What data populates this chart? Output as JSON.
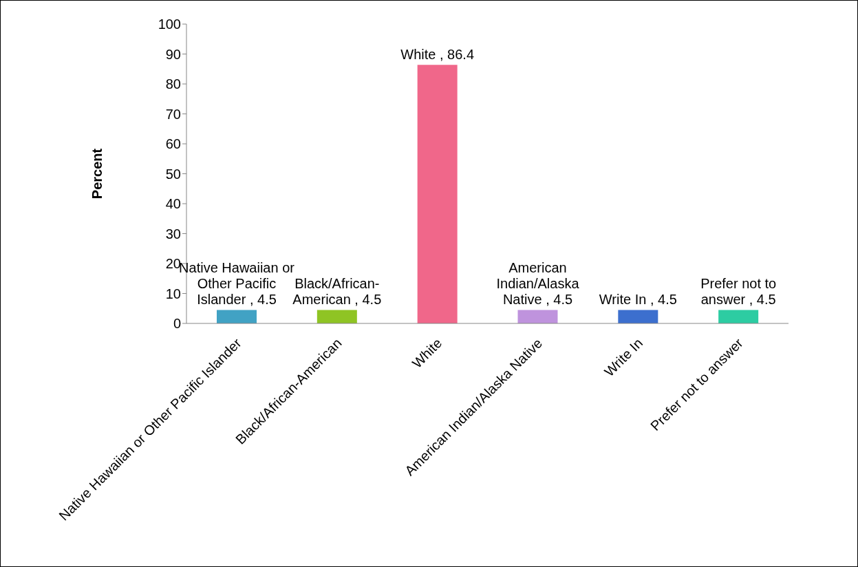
{
  "chart_data": {
    "type": "bar",
    "ylabel": "Percent",
    "categories": [
      "Native Hawaiian or Other Pacific Islander",
      "Black/African-American",
      "White",
      "American Indian/Alaska Native",
      "Write In",
      "Prefer not to answer"
    ],
    "values": [
      4.5,
      4.5,
      86.4,
      4.5,
      4.5,
      4.5
    ],
    "colors": [
      "#41a2c4",
      "#8fc424",
      "#f0678a",
      "#bf93dd",
      "#3c6fce",
      "#2dcca2"
    ],
    "value_labels": [
      "Native Hawaiian or Other Pacific Islander , 4.5",
      "Black/African-American , 4.5",
      "White , 86.4",
      "American Indian/Alaska Native , 4.5",
      "Write In , 4.5",
      "Prefer not to answer , 4.5"
    ],
    "ylim": [
      0,
      100
    ],
    "yticks": [
      0,
      10,
      20,
      30,
      40,
      50,
      60,
      70,
      80,
      90,
      100
    ],
    "grid": false,
    "legend": false
  }
}
